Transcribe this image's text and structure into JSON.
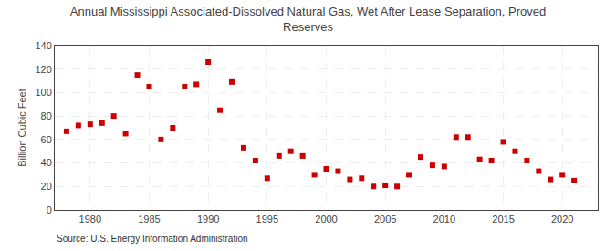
{
  "chart_data": {
    "type": "scatter",
    "title": "Annual Mississippi Associated-Dissolved Natural Gas, Wet After Lease Separation, Proved\nReserves",
    "ylabel": "Billion Cubic Feet",
    "annotations": [
      "Source: U.S. Energy Information Administration"
    ],
    "x": [
      1978,
      1979,
      1980,
      1981,
      1982,
      1983,
      1984,
      1985,
      1986,
      1987,
      1988,
      1989,
      1990,
      1991,
      1992,
      1993,
      1994,
      1995,
      1996,
      1997,
      1998,
      1999,
      2000,
      2001,
      2002,
      2003,
      2004,
      2005,
      2006,
      2007,
      2008,
      2009,
      2010,
      2011,
      2012,
      2013,
      2014,
      2015,
      2016,
      2017,
      2018,
      2019,
      2020,
      2021
    ],
    "values": [
      67,
      72,
      73,
      74,
      80,
      65,
      115,
      105,
      60,
      70,
      105,
      107,
      126,
      85,
      109,
      53,
      42,
      27,
      46,
      50,
      46,
      30,
      35,
      33,
      26,
      27,
      20,
      21,
      20,
      30,
      45,
      38,
      37,
      62,
      62,
      43,
      42,
      58,
      50,
      42,
      33,
      26,
      30,
      25
    ],
    "color": "#cc0000",
    "marker": "square",
    "xlim": [
      1977,
      2023
    ],
    "xticks": [
      1980,
      1985,
      1990,
      1995,
      2000,
      2005,
      2010,
      2015,
      2020
    ],
    "ylim": [
      0,
      140
    ],
    "yticks": [
      0,
      20,
      40,
      60,
      80,
      100,
      120,
      140
    ],
    "grid": true
  }
}
